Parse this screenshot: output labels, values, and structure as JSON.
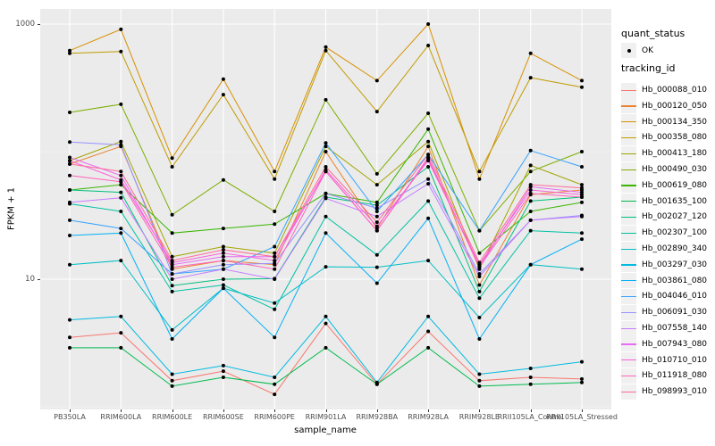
{
  "chart": {
    "y_axis_label": "FPKM + 1",
    "x_axis_label": "sample_name",
    "y_tick_labels": [
      "1000",
      "10"
    ],
    "y_tick_values": [
      1000,
      10
    ]
  },
  "legend": {
    "quant_status_title": "quant_status",
    "quant_status_items": [
      {
        "label": "OK",
        "marker": "black-point"
      }
    ],
    "tracking_id_title": "tracking_id"
  },
  "colors": {
    "panel_background": "#EBEBEB",
    "gridline": "#FFFFFF",
    "legend_key_background": "#F0F0F0",
    "tick_text": "#4D4D4D",
    "point_marker": "#000000"
  },
  "chart_data": {
    "type": "line",
    "title": "",
    "xlabel": "sample_name",
    "ylabel": "FPKM + 1",
    "y_scale": "log10",
    "ylim": [
      0.95,
      1300
    ],
    "y_breaks": [
      10,
      1000
    ],
    "y_minor_breaks": [
      1,
      100
    ],
    "grid": true,
    "legend_position": "right",
    "point_marker": {
      "shape": "circle",
      "color": "#000000",
      "legend": "OK"
    },
    "categories": [
      "PB350LA",
      "RRIM600LA",
      "RRIM600LE",
      "RRIM600SE",
      "RRIM600PE",
      "RRIM901LA",
      "RRIM928BA",
      "RRIM928LA",
      "RRIM928LE",
      "RRII105LA_Control",
      "RRII105LA_Stressed"
    ],
    "series": [
      {
        "name": "Hb_000088_010",
        "color": "#F8766D",
        "values": [
          3.5,
          3.8,
          1.6,
          1.9,
          1.25,
          4.5,
          1.5,
          3.9,
          1.6,
          1.7,
          1.65
        ]
      },
      {
        "name": "Hb_000120_050",
        "color": "#EA8331",
        "values": [
          80,
          110,
          12,
          14,
          13,
          100,
          25,
          110,
          9,
          46,
          50
        ]
      },
      {
        "name": "Hb_000134_350",
        "color": "#D89000",
        "values": [
          620,
          910,
          89,
          370,
          70,
          660,
          360,
          1000,
          61,
          590,
          360
        ]
      },
      {
        "name": "Hb_000358_080",
        "color": "#C09B00",
        "values": [
          590,
          610,
          76,
          280,
          61,
          620,
          206,
          680,
          70,
          380,
          320
        ]
      },
      {
        "name": "Hb_000413_180",
        "color": "#A3A500",
        "values": [
          85,
          120,
          15,
          18,
          16,
          110,
          55,
          120,
          12,
          78,
          55
        ]
      },
      {
        "name": "Hb_000490_030",
        "color": "#7CAE00",
        "values": [
          203,
          235,
          32,
          60,
          34,
          255,
          67,
          200,
          24,
          70,
          100
        ]
      },
      {
        "name": "Hb_000619_080",
        "color": "#39B600",
        "values": [
          50,
          55,
          23,
          25,
          27,
          47,
          40,
          150,
          16,
          34,
          40
        ]
      },
      {
        "name": "Hb_001635_100",
        "color": "#00BB4E",
        "values": [
          2.9,
          2.9,
          1.45,
          1.7,
          1.5,
          2.9,
          1.5,
          2.9,
          1.45,
          1.5,
          1.55
        ]
      },
      {
        "name": "Hb_002027_120",
        "color": "#00BF7D",
        "values": [
          50,
          48,
          8.9,
          10,
          10.1,
          44,
          38,
          76,
          8,
          41,
          44
        ]
      },
      {
        "name": "Hb_002307_100",
        "color": "#00C1A3",
        "values": [
          39,
          34,
          8.0,
          9.0,
          5.8,
          31,
          15.5,
          41,
          7.1,
          24,
          23
        ]
      },
      {
        "name": "Hb_002890_340",
        "color": "#00BFC4",
        "values": [
          13,
          14,
          4.0,
          8.5,
          6.5,
          12.5,
          12.4,
          14,
          5.0,
          13,
          12
        ]
      },
      {
        "name": "Hb_003297_030",
        "color": "#00BAE0",
        "values": [
          4.8,
          5.1,
          1.8,
          2.1,
          1.7,
          5.1,
          1.55,
          5.1,
          1.8,
          2.0,
          2.25
        ]
      },
      {
        "name": "Hb_003861_080",
        "color": "#00B0F6",
        "values": [
          22,
          23,
          3.4,
          8.5,
          3.5,
          23,
          9.3,
          30,
          3.4,
          13,
          20.6
        ]
      },
      {
        "name": "Hb_004046_010",
        "color": "#35A2FF",
        "values": [
          29,
          25,
          11,
          12,
          18,
          117,
          34,
          95,
          24,
          102,
          76
        ]
      },
      {
        "name": "Hb_006091_030",
        "color": "#9590FF",
        "values": [
          119,
          113,
          11,
          13,
          13.3,
          47,
          36,
          61,
          11,
          29,
          31.6
        ]
      },
      {
        "name": "Hb_007558_140",
        "color": "#C77CFF",
        "values": [
          40,
          43.5,
          10,
          12,
          10,
          43,
          31,
          56,
          10.5,
          29,
          31
        ]
      },
      {
        "name": "Hb_007943_080",
        "color": "#E76BF3",
        "values": [
          90,
          65,
          13,
          15,
          15,
          70,
          24,
          90,
          12.5,
          53,
          48
        ]
      },
      {
        "name": "Hb_010710_010",
        "color": "#FA62DB",
        "values": [
          85,
          60,
          13.5,
          16,
          14,
          72,
          26,
          85,
          13,
          50,
          46
        ]
      },
      {
        "name": "Hb_011918_080",
        "color": "#FF62BC",
        "values": [
          65,
          58,
          12.4,
          14,
          12,
          70,
          24,
          88,
          12.4,
          47,
          44
        ]
      },
      {
        "name": "Hb_098993_010",
        "color": "#FF6A98",
        "values": [
          80,
          70,
          14,
          17,
          15,
          76,
          28,
          95,
          13.5,
          55,
          52
        ]
      }
    ]
  }
}
